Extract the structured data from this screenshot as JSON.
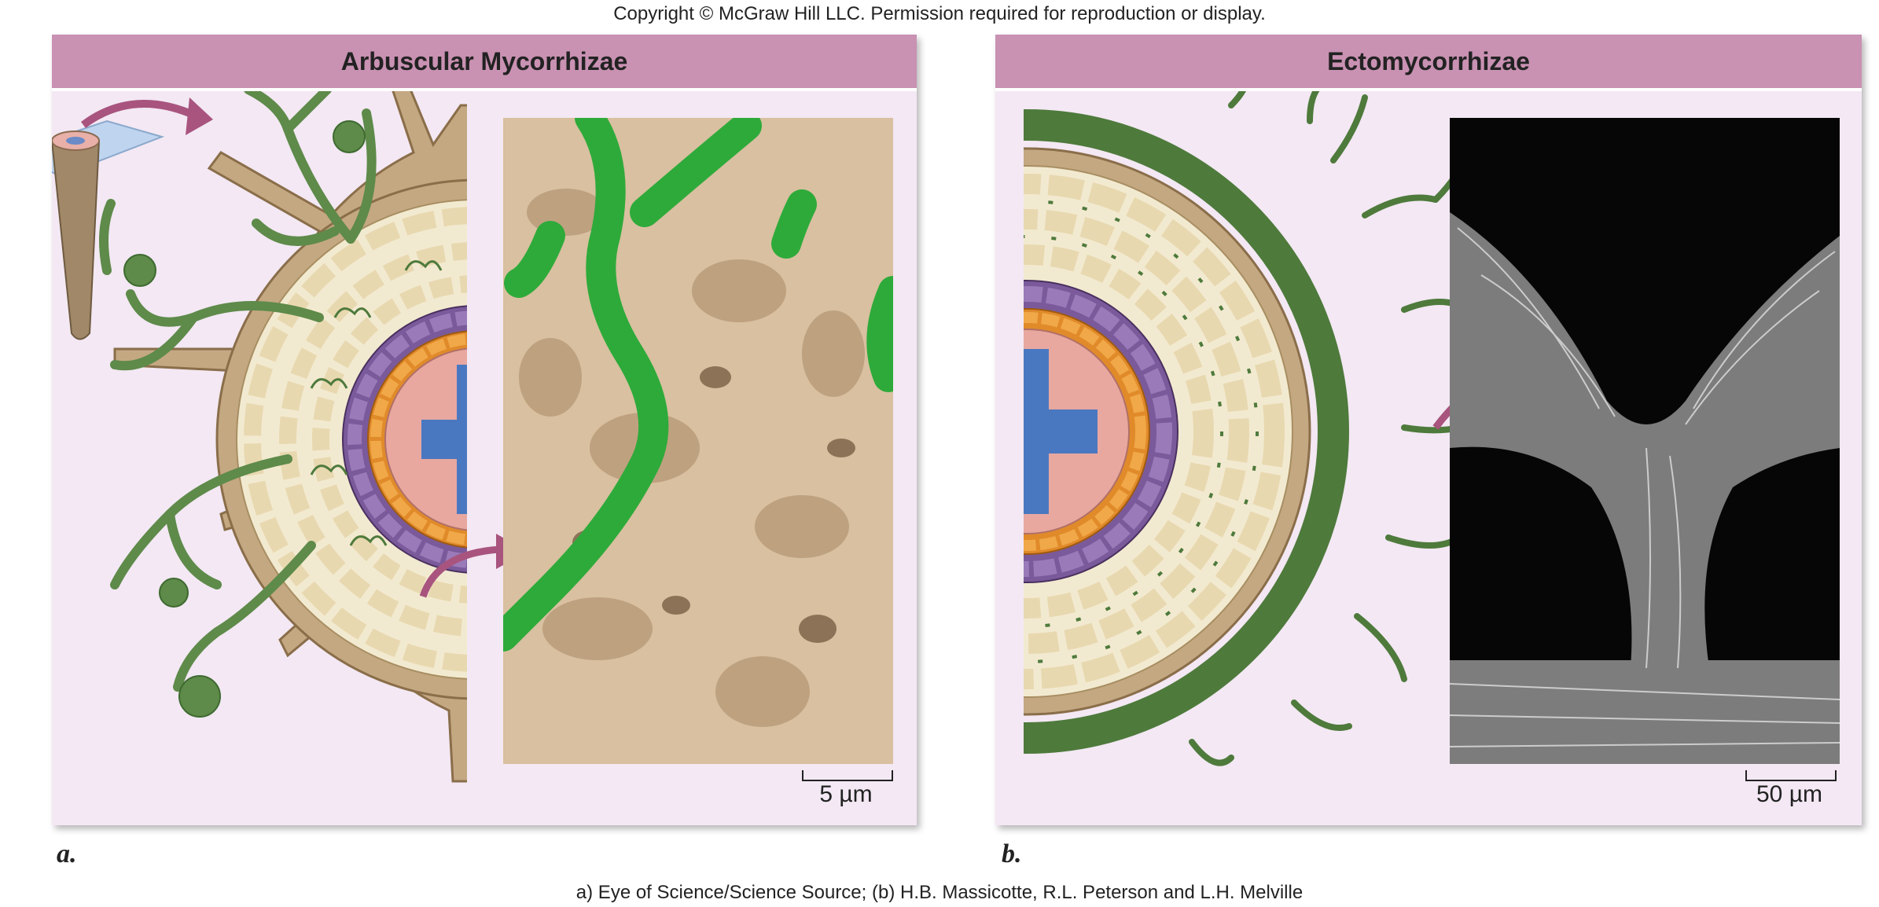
{
  "copyright": "Copyright © McGraw Hill LLC. Permission required for reproduction or display.",
  "panel_a": {
    "title": "Arbuscular Mycorrhizae",
    "scale_label": "5 µm",
    "letter": "a."
  },
  "panel_b": {
    "title": "Ectomycorrhizae",
    "scale_label": "50 µm",
    "letter": "b."
  },
  "credit": "a) Eye of Science/Science Source; (b) H.B. Massicotte, R.L. Peterson and L.H. Melville",
  "colors": {
    "header": "#c991b2",
    "panel_bg": "#f3e8f3",
    "hyphae": "#5e8a4a",
    "endodermis": "#7a5a9a",
    "pericycle": "#e08a2a",
    "xylem": "#4a78c0",
    "phloem": "#e8a8a0",
    "cortex": "#f2ead0",
    "epidermis": "#b89a72",
    "arrow": "#a8547e"
  }
}
